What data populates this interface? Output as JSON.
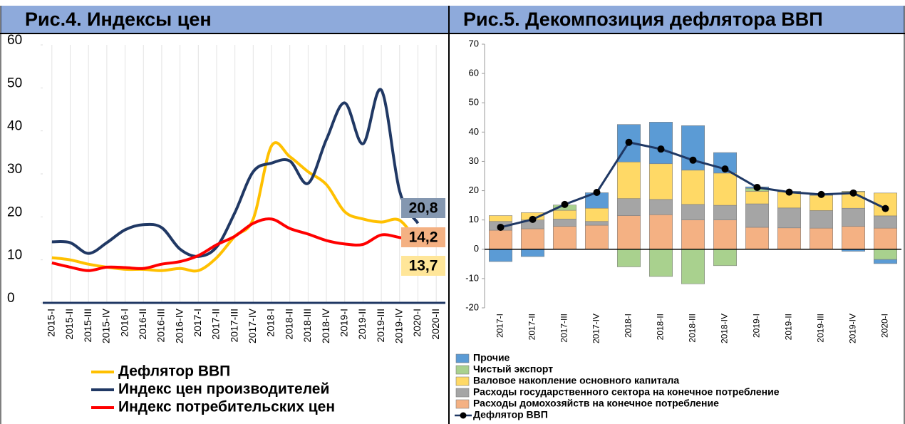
{
  "chart_data": [
    {
      "type": "line",
      "title": "Рис.4. Индексы цен",
      "categories": [
        "2015-I",
        "2015-II",
        "2015-III",
        "2015-IV",
        "2016-I",
        "2016-II",
        "2016-III",
        "2016-IV",
        "2017-I",
        "2017-II",
        "2017-III",
        "2017-IV",
        "2018-I",
        "2018-II",
        "2018-III",
        "2018-IV",
        "2019-I",
        "2019-II",
        "2019-III",
        "2019-IV",
        "2020-I",
        "2020-II"
      ],
      "series": [
        {
          "name": "Дефлятор ВВП",
          "color": "#ffc000",
          "values": [
            10.5,
            10,
            9,
            8.3,
            7.8,
            7.8,
            7.5,
            8,
            7.5,
            10.5,
            15.5,
            19.5,
            36.5,
            34,
            30.5,
            27.5,
            21.2,
            19.5,
            18.8,
            19.2,
            14,
            null
          ]
        },
        {
          "name": "Индекс цен производителей",
          "color": "#203864",
          "values": [
            14.2,
            14,
            11.5,
            14,
            17,
            18.2,
            17.5,
            12.5,
            10.8,
            13,
            21,
            30.5,
            32.5,
            33,
            27.8,
            38,
            46.5,
            37,
            49.5,
            26,
            18.5,
            null
          ]
        },
        {
          "name": "Индекс потребительских цен",
          "color": "#ff0000",
          "values": [
            9.3,
            8.3,
            7.5,
            8.3,
            8.2,
            8,
            9,
            9.6,
            11,
            13.5,
            15.5,
            18.5,
            19.5,
            17.3,
            16,
            14.5,
            13.7,
            13.6,
            15.8,
            15.2,
            14.5,
            null
          ]
        }
      ],
      "annotations": [
        {
          "text": "20,8",
          "color": "#8497b0"
        },
        {
          "text": "14,2",
          "color": "#f4b183"
        },
        {
          "text": "13,7",
          "color": "#ffe699"
        }
      ],
      "ylim": [
        0,
        60
      ],
      "yticks": [
        0,
        10,
        20,
        30,
        40,
        50,
        60
      ],
      "grid": true
    },
    {
      "type": "bar",
      "title": "Рис.5. Декомпозиция дефлятора ВВП",
      "stacked": true,
      "categories": [
        "2017-I",
        "2017-II",
        "2017-III",
        "2017-IV",
        "2018-I",
        "2018-II",
        "2018-III",
        "2018-IV",
        "2019-I",
        "2019-II",
        "2019-III",
        "2019-IV",
        "2020-I"
      ],
      "series": [
        {
          "name": "Прочие",
          "color": "#5b9bd5",
          "values": [
            -4.2,
            -2.5,
            0,
            5.3,
            12.8,
            14.2,
            15.2,
            7,
            0.5,
            0.2,
            0.2,
            -0.7,
            -1.4
          ]
        },
        {
          "name": "Чистый экспорт",
          "color": "#a9d18e",
          "values": [
            0,
            0,
            1.8,
            0,
            -6,
            -9.3,
            -11.8,
            -5.6,
            1,
            0,
            0,
            0.2,
            -3.5
          ]
        },
        {
          "name": "Валовое накопление основного капитала",
          "color": "#ffd966",
          "values": [
            2,
            2.5,
            3,
            4.5,
            12.5,
            12.2,
            11.7,
            11,
            4.3,
            5.5,
            5.2,
            5.6,
            7.8
          ]
        },
        {
          "name": "Расходы государственного сектора на конечное потребление",
          "color": "#a5a5a5",
          "values": [
            3,
            3,
            2.5,
            1.3,
            5.8,
            5.2,
            5.3,
            5,
            8,
            6.8,
            6,
            6.2,
            4.2
          ]
        },
        {
          "name": "Расходы домохозяйств на конечное потребление",
          "color": "#f4b183",
          "values": [
            6.5,
            7,
            7.8,
            8.2,
            11.5,
            11.8,
            10,
            10,
            7.5,
            7.3,
            7.2,
            7.8,
            7.2
          ]
        },
        {
          "name": "Дефлятор ВВП",
          "color": "#1f3864",
          "type": "line",
          "values": [
            7.5,
            10.2,
            15.3,
            19.4,
            36.5,
            34.2,
            30.4,
            27.4,
            21.1,
            19.5,
            18.7,
            19.2,
            13.9
          ]
        }
      ],
      "ylim": [
        -20,
        70
      ],
      "yticks": [
        -20,
        -10,
        0,
        10,
        20,
        30,
        40,
        50,
        60,
        70
      ]
    }
  ]
}
